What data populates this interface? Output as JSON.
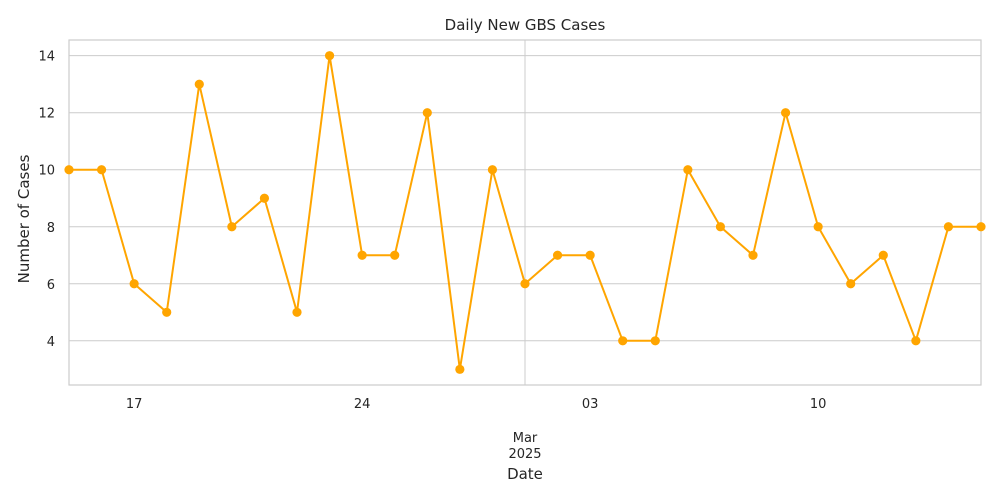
{
  "chart_data": {
    "type": "line",
    "title": "Daily New GBS Cases",
    "xlabel": "Date",
    "ylabel": "Number of Cases",
    "x": [
      "2025-02-15",
      "2025-02-16",
      "2025-02-17",
      "2025-02-18",
      "2025-02-19",
      "2025-02-20",
      "2025-02-21",
      "2025-02-22",
      "2025-02-23",
      "2025-02-24",
      "2025-02-25",
      "2025-02-26",
      "2025-02-27",
      "2025-02-28",
      "2025-03-01",
      "2025-03-02",
      "2025-03-03",
      "2025-03-04",
      "2025-03-05",
      "2025-03-06",
      "2025-03-07",
      "2025-03-08",
      "2025-03-09",
      "2025-03-10",
      "2025-03-11",
      "2025-03-12",
      "2025-03-13",
      "2025-03-14",
      "2025-03-15"
    ],
    "series": [
      {
        "values": [
          10,
          10,
          6,
          5,
          13,
          8,
          9,
          5,
          14,
          7,
          7,
          12,
          3,
          10,
          6,
          7,
          7,
          4,
          4,
          10,
          8,
          7,
          12,
          8,
          6,
          7,
          4,
          8,
          8
        ]
      }
    ],
    "xlim": [
      "2025-02-15",
      "2025-03-15"
    ],
    "ylim": [
      2.45,
      14.55
    ],
    "yticks": [
      4,
      6,
      8,
      10,
      12,
      14
    ],
    "xticks": [
      {
        "date": "2025-02-17",
        "label": "17"
      },
      {
        "date": "2025-02-24",
        "label": "24"
      },
      {
        "date": "2025-03-03",
        "label": "03"
      },
      {
        "date": "2025-03-10",
        "label": "10"
      }
    ],
    "xtick_major": {
      "date": "2025-03-01",
      "label": "Mar",
      "sublabel": "2025"
    },
    "grid": true,
    "line_color": "#FFA500"
  }
}
